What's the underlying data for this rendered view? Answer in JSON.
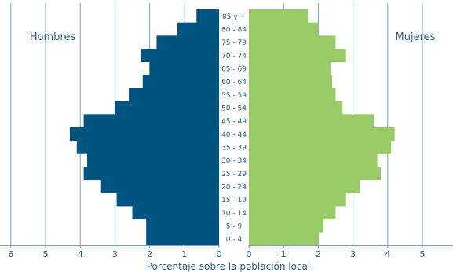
{
  "chart_data": {
    "type": "bar",
    "orientation": "horizontal-population-pyramid",
    "categories": [
      "0 - 4",
      "5 - 9",
      "10 - 14",
      "15 - 19",
      "20 - 24",
      "25 - 29",
      "30 - 34",
      "35 - 39",
      "40 - 44",
      "45 - 49",
      "50 - 54",
      "55 - 59",
      "60 - 64",
      "65 - 69",
      "70 - 74",
      "75 - 79",
      "80 - 84",
      "85 y +"
    ],
    "series": [
      {
        "name": "Hombres",
        "values": [
          2.1,
          2.1,
          2.5,
          2.95,
          3.4,
          3.9,
          3.8,
          4.1,
          4.3,
          3.9,
          3.0,
          2.6,
          2.2,
          2.0,
          2.25,
          1.8,
          1.2,
          0.65
        ]
      },
      {
        "name": "Mujeres",
        "values": [
          2.0,
          2.15,
          2.5,
          2.8,
          3.2,
          3.8,
          3.7,
          4.1,
          4.2,
          3.6,
          2.7,
          2.5,
          2.4,
          2.35,
          2.8,
          2.5,
          2.0,
          1.7
        ]
      }
    ],
    "xlabel": "Porcentaje sobre la población local",
    "xticks_left": [
      "6",
      "5",
      "4",
      "3",
      "2",
      "1",
      "0"
    ],
    "xticks_right": [
      "0",
      "1",
      "2",
      "3",
      "4",
      "5"
    ],
    "xlim": [
      0,
      6
    ],
    "grid": "vertical lines",
    "colors": {
      "hombres": "#005480",
      "mujeres": "#99cc66",
      "grid": "#7a9fbe",
      "text": "#2b5d8a"
    }
  }
}
